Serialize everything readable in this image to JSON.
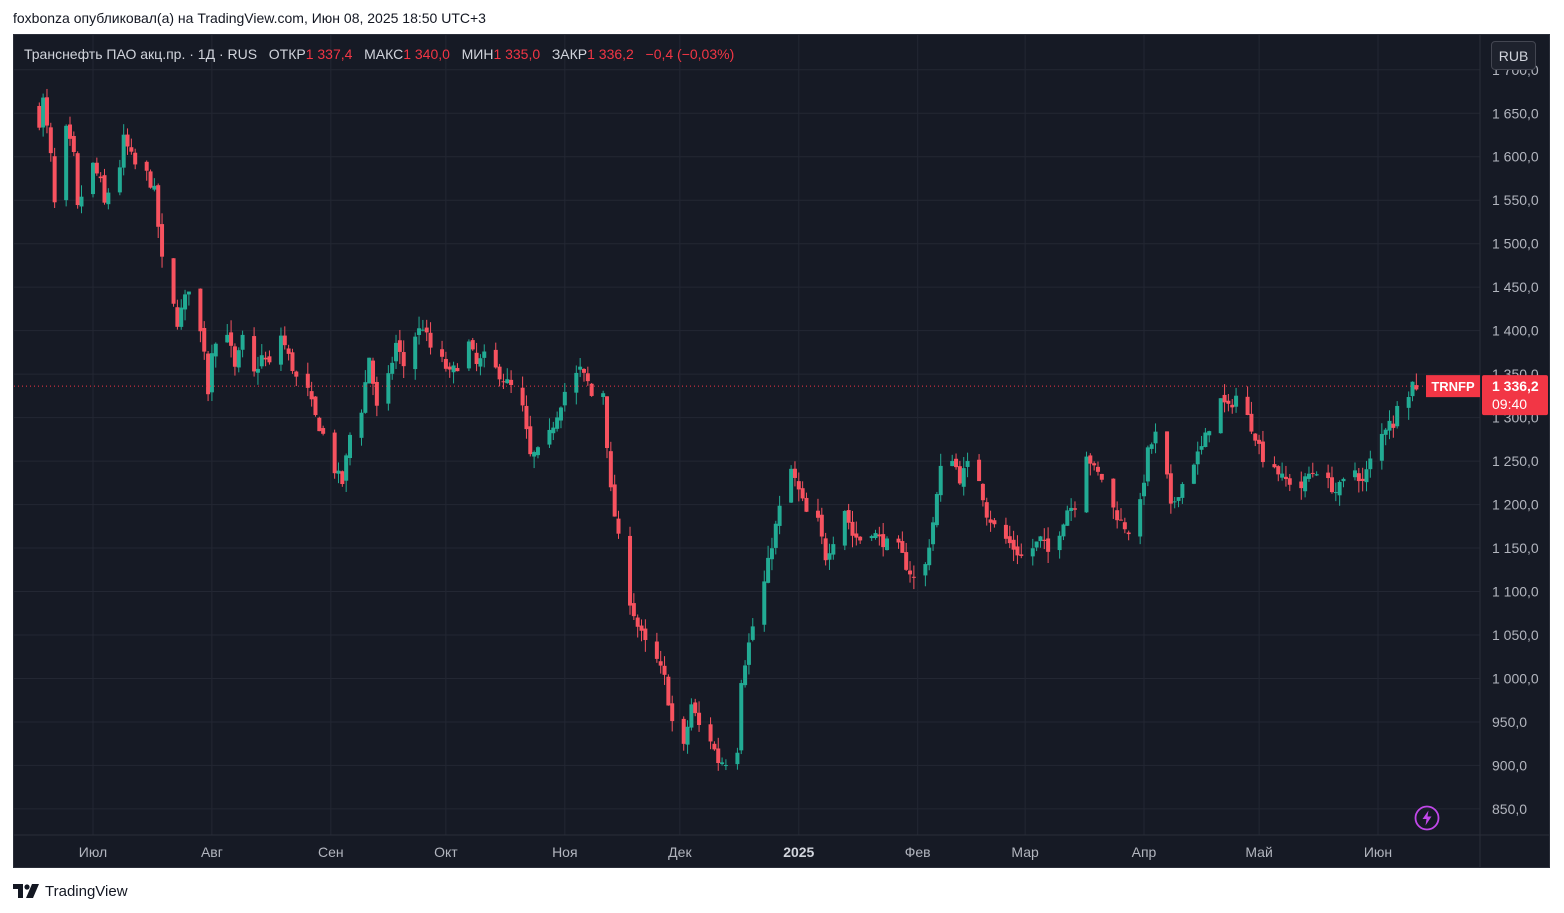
{
  "header": {
    "author": "foxbonza",
    "published_text": "опубликовал(а) на TradingView.com, Июн 08, 2025 18:50 UTC+3"
  },
  "legend": {
    "symbol_name": "Транснефть ПАО акц.пр.",
    "interval": "1Д",
    "exchange": "RUS",
    "open_label": "ОТКР",
    "open_value": "1 337,4",
    "high_label": "МАКС",
    "high_value": "1 340,0",
    "low_label": "МИН",
    "low_value": "1 335,0",
    "close_label": "ЗАКР",
    "close_value": "1 336,2",
    "change": "−0,4 (−0,03%)"
  },
  "currency": "RUB",
  "price_tag": {
    "ticker": "TRNFP",
    "price": "1 336,2",
    "countdown": "09:40"
  },
  "footer": {
    "brand": "TradingView"
  },
  "colors": {
    "background": "#161a25",
    "grid": "#232733",
    "up": "#22ab94",
    "down": "#f7525f",
    "axis_text": "#b2b5be",
    "price_line": "#f23645"
  },
  "icons": {
    "bolt": "lightning-bolt-icon",
    "logo": "tradingview-logo-icon"
  },
  "chart_data": {
    "type": "candlestick",
    "symbol": "TRNFP",
    "currency": "RUB",
    "ylim": [
      820,
      1740
    ],
    "y_ticks": [
      "1 700,0",
      "1 650,0",
      "1 600,0",
      "1 550,0",
      "1 500,0",
      "1 450,0",
      "1 400,0",
      "1 350,0",
      "1 300,0",
      "1 250,0",
      "1 200,0",
      "1 150,0",
      "1 100,0",
      "1 050,0",
      "1 000,0",
      "950,0",
      "900,0",
      "850,0"
    ],
    "y_tick_values": [
      1700,
      1650,
      1600,
      1550,
      1500,
      1450,
      1400,
      1350,
      1300,
      1250,
      1200,
      1150,
      1100,
      1050,
      1000,
      950,
      900,
      850
    ],
    "x_ticks": [
      "Июл",
      "Авг",
      "Сен",
      "Окт",
      "Ноя",
      "Дек",
      "2025",
      "Фев",
      "Мар",
      "Апр",
      "Май",
      "Июн"
    ],
    "x_tick_bold": [
      false,
      false,
      false,
      false,
      false,
      false,
      true,
      false,
      false,
      false,
      false,
      false
    ],
    "x_tick_dates": [
      "2024-07-01",
      "2024-08-01",
      "2024-09-01",
      "2024-10-01",
      "2024-11-01",
      "2024-12-01",
      "2025-01-01",
      "2025-02-01",
      "2025-03-01",
      "2025-04-01",
      "2025-05-01",
      "2025-06-01"
    ],
    "last_price": 1336.2,
    "anchors": [
      [
        "2024-06-17",
        1640
      ],
      [
        "2024-06-18",
        1665
      ],
      [
        "2024-06-20",
        1600
      ],
      [
        "2024-06-21",
        1545
      ],
      [
        "2024-06-24",
        1630
      ],
      [
        "2024-06-26",
        1600
      ],
      [
        "2024-06-27",
        1540
      ],
      [
        "2024-06-28",
        1555
      ],
      [
        "2024-07-01",
        1590
      ],
      [
        "2024-07-03",
        1570
      ],
      [
        "2024-07-04",
        1545
      ],
      [
        "2024-07-05",
        1560
      ],
      [
        "2024-07-08",
        1590
      ],
      [
        "2024-07-09",
        1620
      ],
      [
        "2024-07-10",
        1610
      ],
      [
        "2024-07-12",
        1590
      ],
      [
        "2024-07-15",
        1580
      ],
      [
        "2024-07-17",
        1560
      ],
      [
        "2024-07-19",
        1480
      ],
      [
        "2024-07-23",
        1410
      ],
      [
        "2024-07-26",
        1450
      ],
      [
        "2024-07-30",
        1380
      ],
      [
        "2024-07-31",
        1330
      ],
      [
        "2024-08-01",
        1380
      ],
      [
        "2024-08-05",
        1400
      ],
      [
        "2024-08-07",
        1355
      ],
      [
        "2024-08-09",
        1390
      ],
      [
        "2024-08-12",
        1350
      ],
      [
        "2024-08-14",
        1370
      ],
      [
        "2024-08-16",
        1360
      ],
      [
        "2024-08-19",
        1395
      ],
      [
        "2024-08-21",
        1370
      ],
      [
        "2024-08-23",
        1345
      ],
      [
        "2024-08-26",
        1330
      ],
      [
        "2024-08-28",
        1300
      ],
      [
        "2024-08-30",
        1280
      ],
      [
        "2024-09-02",
        1240
      ],
      [
        "2024-09-04",
        1225
      ],
      [
        "2024-09-06",
        1280
      ],
      [
        "2024-09-09",
        1310
      ],
      [
        "2024-09-11",
        1370
      ],
      [
        "2024-09-13",
        1310
      ],
      [
        "2024-09-16",
        1345
      ],
      [
        "2024-09-18",
        1385
      ],
      [
        "2024-09-20",
        1360
      ],
      [
        "2024-09-23",
        1395
      ],
      [
        "2024-09-25",
        1405
      ],
      [
        "2024-09-27",
        1380
      ],
      [
        "2024-09-30",
        1365
      ],
      [
        "2024-10-02",
        1350
      ],
      [
        "2024-10-04",
        1360
      ],
      [
        "2024-10-07",
        1385
      ],
      [
        "2024-10-09",
        1360
      ],
      [
        "2024-10-11",
        1370
      ],
      [
        "2024-10-14",
        1355
      ],
      [
        "2024-10-16",
        1345
      ],
      [
        "2024-10-18",
        1335
      ],
      [
        "2024-10-21",
        1310
      ],
      [
        "2024-10-23",
        1255
      ],
      [
        "2024-10-25",
        1260
      ],
      [
        "2024-10-28",
        1280
      ],
      [
        "2024-10-30",
        1305
      ],
      [
        "2024-11-01",
        1330
      ],
      [
        "2024-11-05",
        1355
      ],
      [
        "2024-11-07",
        1340
      ],
      [
        "2024-11-08",
        1325
      ],
      [
        "2024-11-11",
        1330
      ],
      [
        "2024-11-12",
        1270
      ],
      [
        "2024-11-13",
        1215
      ],
      [
        "2024-11-15",
        1160
      ],
      [
        "2024-11-18",
        1090
      ],
      [
        "2024-11-20",
        1060
      ],
      [
        "2024-11-22",
        1040
      ],
      [
        "2024-11-25",
        1020
      ],
      [
        "2024-11-27",
        1000
      ],
      [
        "2024-11-29",
        950
      ],
      [
        "2024-12-02",
        920
      ],
      [
        "2024-12-04",
        970
      ],
      [
        "2024-12-06",
        945
      ],
      [
        "2024-12-09",
        930
      ],
      [
        "2024-12-11",
        905
      ],
      [
        "2024-12-13",
        905
      ],
      [
        "2024-12-16",
        920
      ],
      [
        "2024-12-17",
        1000
      ],
      [
        "2024-12-19",
        1040
      ],
      [
        "2024-12-20",
        1060
      ],
      [
        "2024-12-23",
        1110
      ],
      [
        "2024-12-25",
        1155
      ],
      [
        "2024-12-27",
        1195
      ],
      [
        "2024-12-30",
        1240
      ],
      [
        "2025-01-03",
        1190
      ],
      [
        "2025-01-06",
        1180
      ],
      [
        "2025-01-08",
        1140
      ],
      [
        "2025-01-10",
        1160
      ],
      [
        "2025-01-13",
        1195
      ],
      [
        "2025-01-15",
        1165
      ],
      [
        "2025-01-17",
        1160
      ],
      [
        "2025-01-20",
        1170
      ],
      [
        "2025-01-22",
        1160
      ],
      [
        "2025-01-24",
        1155
      ],
      [
        "2025-01-27",
        1150
      ],
      [
        "2025-01-29",
        1130
      ],
      [
        "2025-01-31",
        1115
      ],
      [
        "2025-02-03",
        1130
      ],
      [
        "2025-02-05",
        1180
      ],
      [
        "2025-02-07",
        1240
      ],
      [
        "2025-02-10",
        1255
      ],
      [
        "2025-02-12",
        1230
      ],
      [
        "2025-02-14",
        1245
      ],
      [
        "2025-02-17",
        1230
      ],
      [
        "2025-02-19",
        1190
      ],
      [
        "2025-02-21",
        1175
      ],
      [
        "2025-02-24",
        1160
      ],
      [
        "2025-02-26",
        1150
      ],
      [
        "2025-02-28",
        1140
      ],
      [
        "2025-03-03",
        1150
      ],
      [
        "2025-03-05",
        1160
      ],
      [
        "2025-03-07",
        1145
      ],
      [
        "2025-03-10",
        1170
      ],
      [
        "2025-03-12",
        1195
      ],
      [
        "2025-03-14",
        1200
      ],
      [
        "2025-03-17",
        1260
      ],
      [
        "2025-03-19",
        1240
      ],
      [
        "2025-03-21",
        1230
      ],
      [
        "2025-03-24",
        1195
      ],
      [
        "2025-03-26",
        1180
      ],
      [
        "2025-03-28",
        1170
      ],
      [
        "2025-03-31",
        1200
      ],
      [
        "2025-04-02",
        1260
      ],
      [
        "2025-04-04",
        1280
      ],
      [
        "2025-04-07",
        1230
      ],
      [
        "2025-04-08",
        1195
      ],
      [
        "2025-04-10",
        1215
      ],
      [
        "2025-04-14",
        1250
      ],
      [
        "2025-04-16",
        1265
      ],
      [
        "2025-04-18",
        1290
      ],
      [
        "2025-04-21",
        1320
      ],
      [
        "2025-04-23",
        1310
      ],
      [
        "2025-04-25",
        1325
      ],
      [
        "2025-04-28",
        1300
      ],
      [
        "2025-04-30",
        1280
      ],
      [
        "2025-05-02",
        1255
      ],
      [
        "2025-05-05",
        1245
      ],
      [
        "2025-05-07",
        1230
      ],
      [
        "2025-05-12",
        1220
      ],
      [
        "2025-05-14",
        1235
      ],
      [
        "2025-05-16",
        1240
      ],
      [
        "2025-05-19",
        1225
      ],
      [
        "2025-05-21",
        1215
      ],
      [
        "2025-05-23",
        1225
      ],
      [
        "2025-05-26",
        1240
      ],
      [
        "2025-05-28",
        1225
      ],
      [
        "2025-05-30",
        1250
      ],
      [
        "2025-06-02",
        1280
      ],
      [
        "2025-06-04",
        1300
      ],
      [
        "2025-06-05",
        1285
      ],
      [
        "2025-06-06",
        1320
      ],
      [
        "2025-06-09",
        1330
      ],
      [
        "2025-06-10",
        1340
      ],
      [
        "2025-06-11",
        1336.2
      ]
    ]
  }
}
